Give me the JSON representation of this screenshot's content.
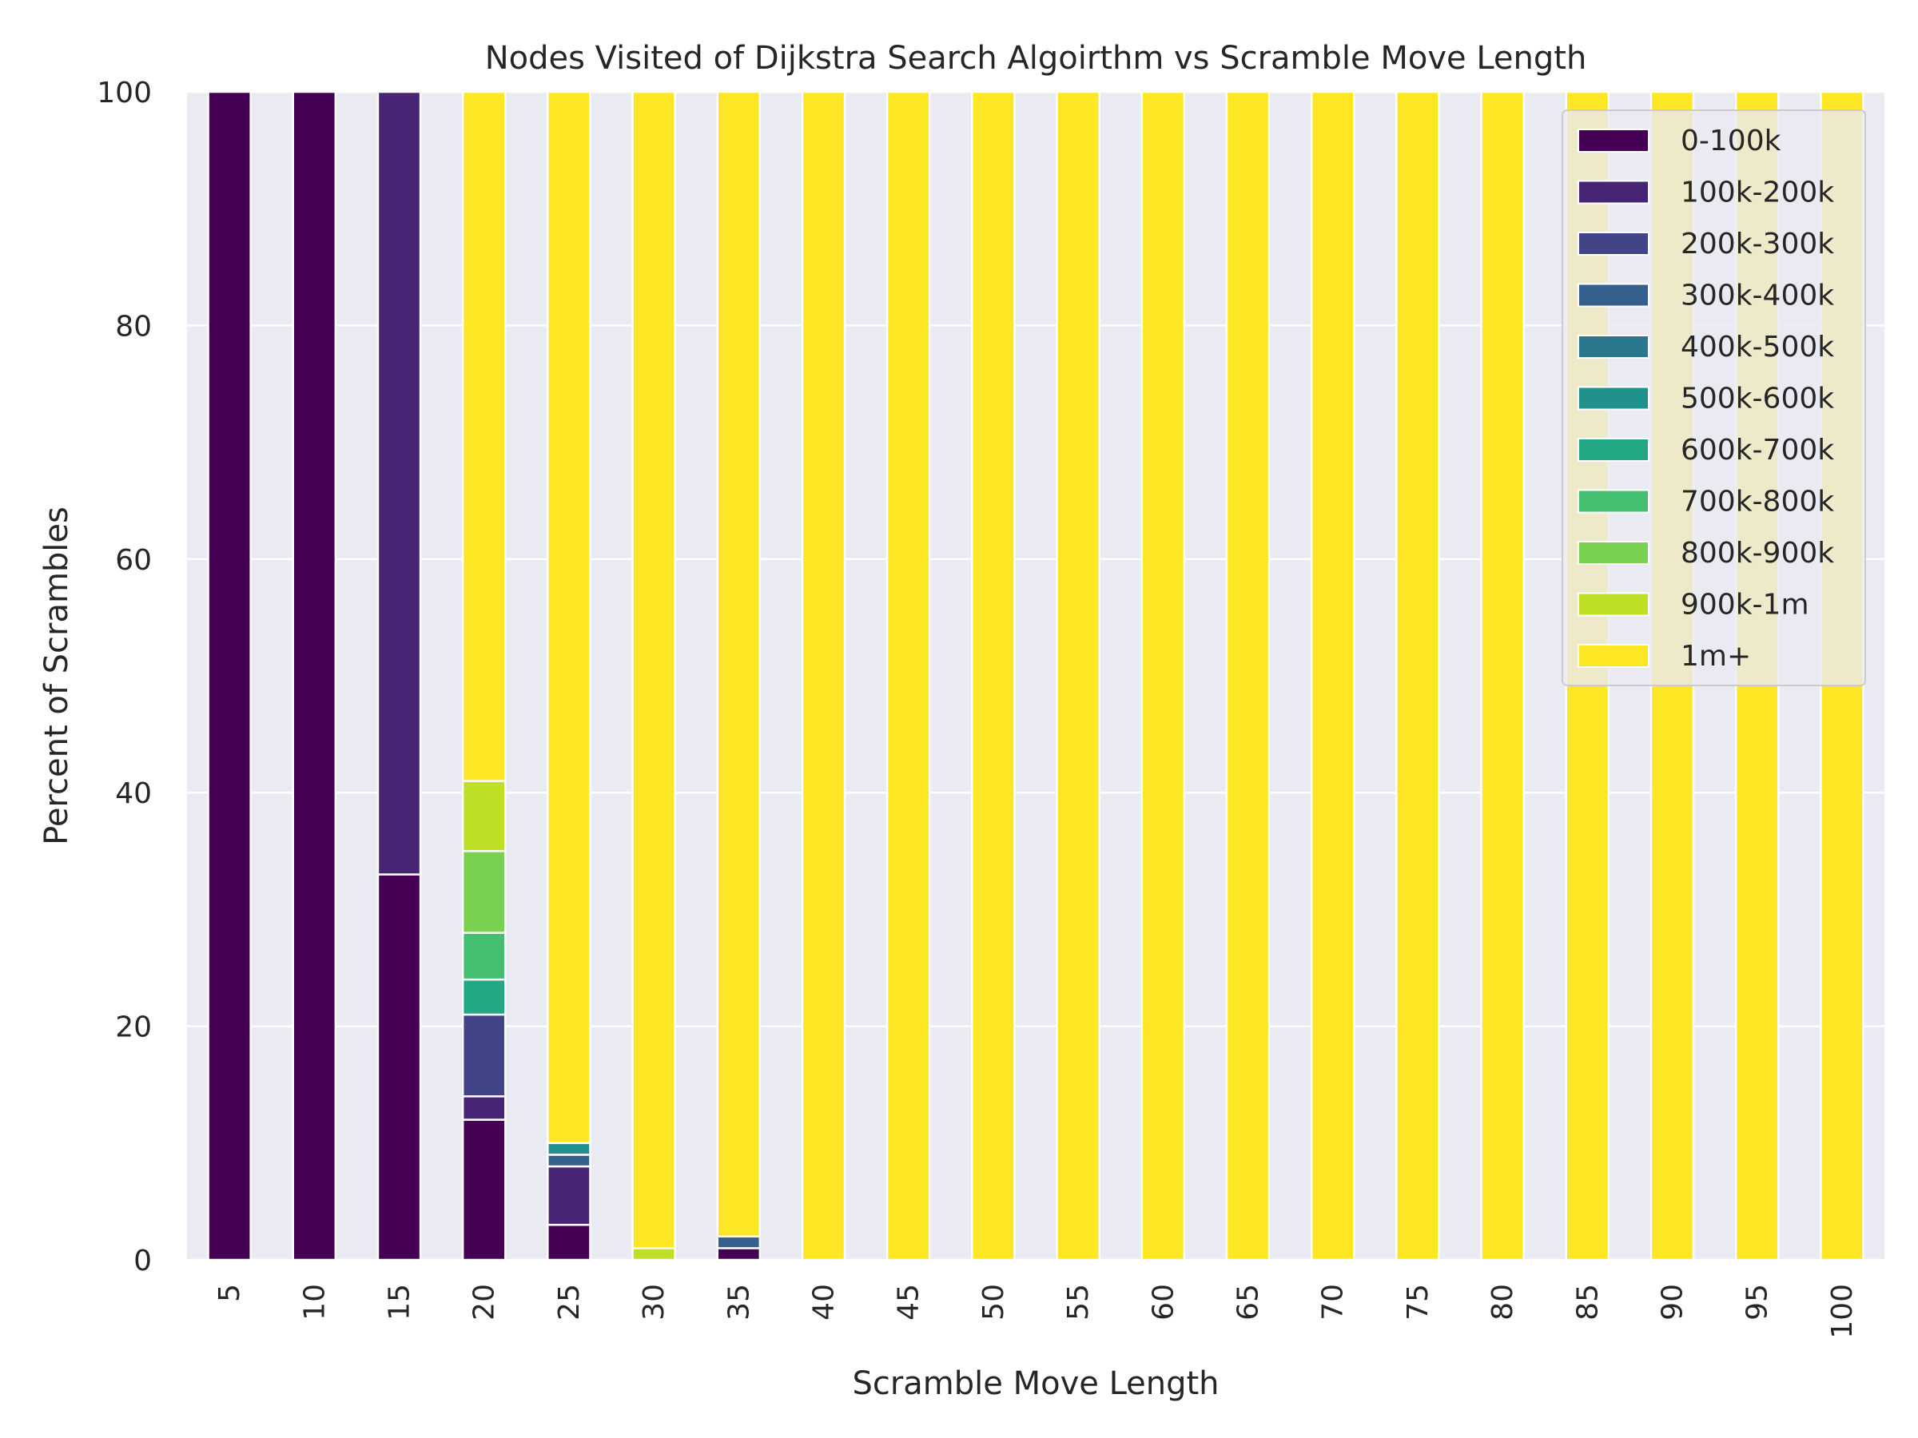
{
  "chart_data": {
    "type": "bar",
    "stacked": true,
    "title": "Nodes Visited of Dijkstra Search Algoirthm vs Scramble Move Length",
    "xlabel": "Scramble Move Length",
    "ylabel": "Percent of Scrambles",
    "ylim": [
      0,
      100
    ],
    "yticks": [
      "0",
      "20",
      "40",
      "60",
      "80",
      "100"
    ],
    "grid": true,
    "legend_position": "top-right",
    "categories": [
      "5",
      "10",
      "15",
      "20",
      "25",
      "30",
      "35",
      "40",
      "45",
      "50",
      "55",
      "60",
      "65",
      "70",
      "75",
      "80",
      "85",
      "90",
      "95",
      "100"
    ],
    "series": [
      {
        "name": "0-100k",
        "color": "#440154",
        "values": [
          100,
          100,
          33,
          12,
          3,
          0,
          1,
          0,
          0,
          0,
          0,
          0,
          0,
          0,
          0,
          0,
          0,
          0,
          0,
          0
        ]
      },
      {
        "name": "100k-200k",
        "color": "#482475",
        "values": [
          0,
          0,
          67,
          2,
          5,
          0,
          0,
          0,
          0,
          0,
          0,
          0,
          0,
          0,
          0,
          0,
          0,
          0,
          0,
          0
        ]
      },
      {
        "name": "200k-300k",
        "color": "#414487",
        "values": [
          0,
          0,
          0,
          7,
          0,
          0,
          0,
          0,
          0,
          0,
          0,
          0,
          0,
          0,
          0,
          0,
          0,
          0,
          0,
          0
        ]
      },
      {
        "name": "300k-400k",
        "color": "#355f8d",
        "values": [
          0,
          0,
          0,
          0,
          1,
          0,
          1,
          0,
          0,
          0,
          0,
          0,
          0,
          0,
          0,
          0,
          0,
          0,
          0,
          0
        ]
      },
      {
        "name": "400k-500k",
        "color": "#2a788e",
        "values": [
          0,
          0,
          0,
          0,
          0,
          0,
          0,
          0,
          0,
          0,
          0,
          0,
          0,
          0,
          0,
          0,
          0,
          0,
          0,
          0
        ]
      },
      {
        "name": "500k-600k",
        "color": "#21918c",
        "values": [
          0,
          0,
          0,
          0,
          1,
          0,
          0,
          0,
          0,
          0,
          0,
          0,
          0,
          0,
          0,
          0,
          0,
          0,
          0,
          0
        ]
      },
      {
        "name": "600k-700k",
        "color": "#22a884",
        "values": [
          0,
          0,
          0,
          3,
          0,
          0,
          0,
          0,
          0,
          0,
          0,
          0,
          0,
          0,
          0,
          0,
          0,
          0,
          0,
          0
        ]
      },
      {
        "name": "700k-800k",
        "color": "#44bf70",
        "values": [
          0,
          0,
          0,
          4,
          0,
          0,
          0,
          0,
          0,
          0,
          0,
          0,
          0,
          0,
          0,
          0,
          0,
          0,
          0,
          0
        ]
      },
      {
        "name": "800k-900k",
        "color": "#7ad151",
        "values": [
          0,
          0,
          0,
          7,
          0,
          0,
          0,
          0,
          0,
          0,
          0,
          0,
          0,
          0,
          0,
          0,
          0,
          0,
          0,
          0
        ]
      },
      {
        "name": "900k-1m",
        "color": "#bddf26",
        "values": [
          0,
          0,
          0,
          6,
          0,
          1,
          0,
          0,
          0,
          0,
          0,
          0,
          0,
          0,
          0,
          0,
          0,
          0,
          0,
          0
        ]
      },
      {
        "name": "1m+",
        "color": "#fde725",
        "values": [
          0,
          0,
          0,
          59,
          90,
          99,
          98,
          100,
          100,
          100,
          100,
          100,
          100,
          100,
          100,
          100,
          100,
          100,
          100,
          100
        ]
      }
    ]
  }
}
